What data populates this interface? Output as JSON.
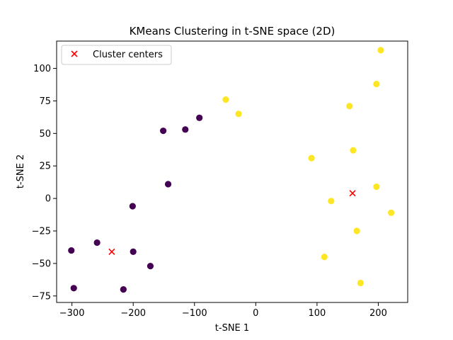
{
  "chart_data": {
    "type": "scatter",
    "title": "KMeans Clustering in t-SNE space (2D)",
    "xlabel": "t-SNE 1",
    "ylabel": "t-SNE 2",
    "xlim": [
      -325,
      248
    ],
    "ylim": [
      -80,
      121
    ],
    "xticks": [
      -300,
      -200,
      -100,
      0,
      100,
      200
    ],
    "yticks": [
      -75,
      -50,
      -25,
      0,
      25,
      50,
      75,
      100
    ],
    "grid": false,
    "legend": {
      "placement": "top-left",
      "entries": [
        "Cluster centers"
      ]
    },
    "colors": {
      "cluster0": "#440154",
      "cluster1": "#fde725",
      "centers": "#ff0000"
    },
    "series": [
      {
        "cluster": 0,
        "points": [
          [
            -301,
            -40
          ],
          [
            -297,
            -69
          ],
          [
            -259,
            -34
          ],
          [
            -216,
            -70
          ],
          [
            -200,
            -41
          ],
          [
            -201,
            -6
          ],
          [
            -172,
            -52
          ],
          [
            -143,
            11
          ],
          [
            -151,
            52
          ],
          [
            -115,
            53
          ],
          [
            -92,
            62
          ]
        ]
      },
      {
        "cluster": 1,
        "points": [
          [
            -49,
            76
          ],
          [
            -28,
            65
          ],
          [
            91,
            31
          ],
          [
            123,
            -2
          ],
          [
            112,
            -45
          ],
          [
            153,
            71
          ],
          [
            159,
            37
          ],
          [
            165,
            -25
          ],
          [
            171,
            -65
          ],
          [
            197,
            88
          ],
          [
            197,
            9
          ],
          [
            204,
            114
          ],
          [
            221,
            -11
          ]
        ]
      }
    ],
    "centers": {
      "name": "Cluster centers",
      "points": [
        [
          -235,
          -41
        ],
        [
          158,
          4
        ]
      ]
    }
  }
}
